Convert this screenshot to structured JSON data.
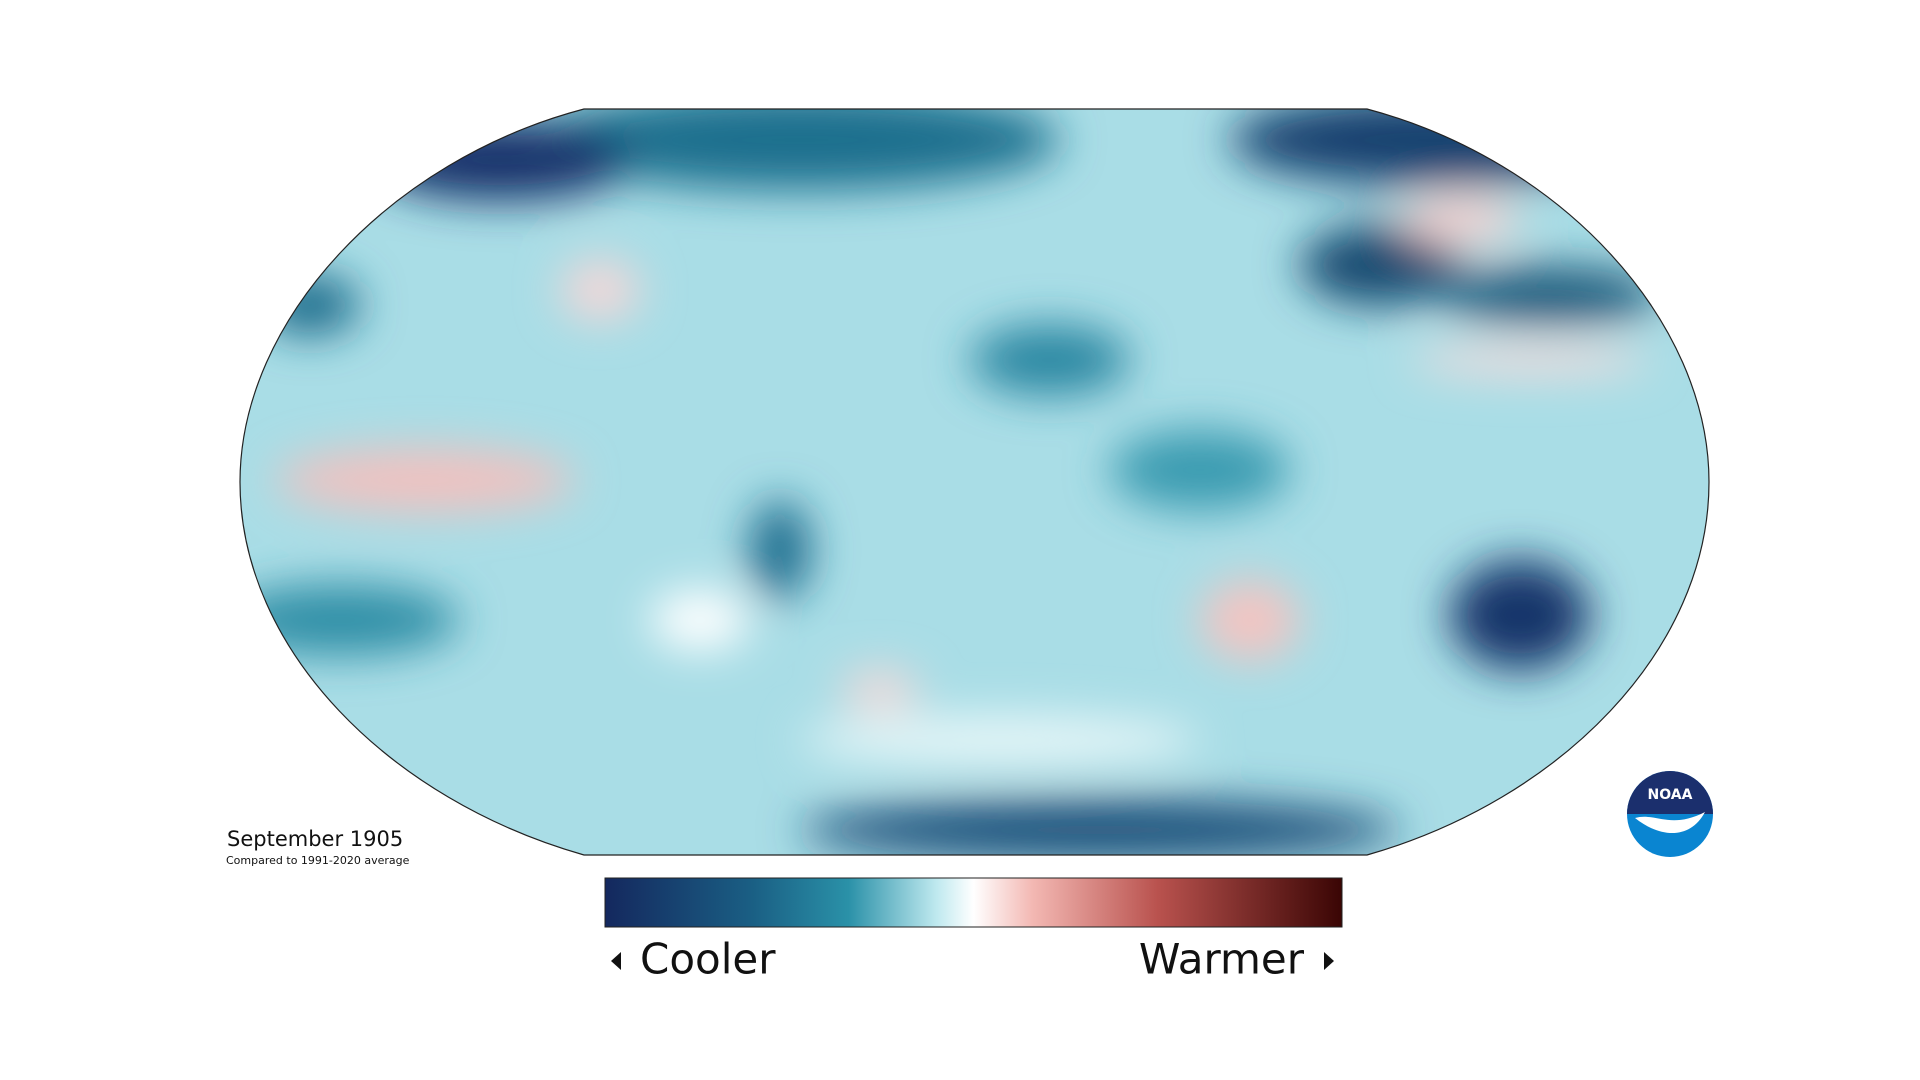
{
  "title": "September 1905",
  "subtitle": "Compared to 1991-2020 average",
  "legend": {
    "low_label": "Cooler",
    "high_label": "Warmer"
  },
  "logo": "NOAA"
}
